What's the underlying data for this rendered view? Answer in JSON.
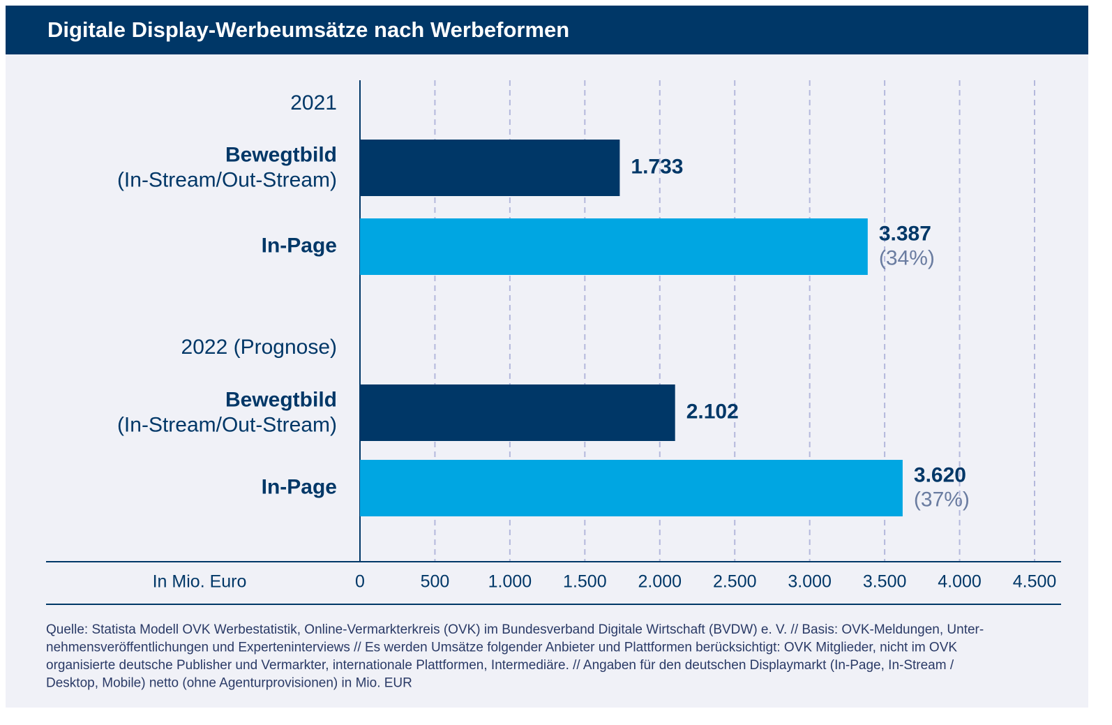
{
  "chart_data": {
    "type": "bar",
    "orientation": "horizontal",
    "title": "Digitale Display-Werbeumsätze nach Werbeformen",
    "groups": [
      {
        "label": "2021",
        "categories": [
          "Bewegtbild",
          "In-Page"
        ],
        "subcategories": [
          "(In-Stream/Out-Stream)",
          null
        ],
        "values": [
          1733,
          3387
        ],
        "value_labels": [
          "1.733",
          "3.387"
        ],
        "share_labels": [
          null,
          "(34%)"
        ],
        "colors": [
          "#003767",
          "#00a6e2"
        ]
      },
      {
        "label": "2022 (Prognose)",
        "categories": [
          "Bewegtbild",
          "In-Page"
        ],
        "subcategories": [
          "(In-Stream/Out-Stream)",
          null
        ],
        "values": [
          2102,
          3620
        ],
        "value_labels": [
          "2.102",
          "3.620"
        ],
        "share_labels": [
          null,
          "(37%)"
        ],
        "colors": [
          "#003767",
          "#00a6e2"
        ]
      }
    ],
    "xlabel": "In Mio. Euro",
    "xlim": [
      0,
      4500
    ],
    "xticks": [
      0,
      500,
      {
        "value": 1000,
        "label": "1.000"
      },
      {
        "value": 1500,
        "label": "1.500"
      },
      {
        "value": 2000,
        "label": "2.000"
      },
      {
        "value": 2500,
        "label": "2.500"
      },
      {
        "value": 3000,
        "label": "3.000"
      },
      {
        "value": 3500,
        "label": "3.500"
      },
      {
        "value": 4000,
        "label": "4.000"
      },
      {
        "value": 4500,
        "label": "4.500"
      }
    ],
    "grid": true,
    "footnote": [
      "Quelle: Statista Modell OVK Werbestatistik, Online-Vermarkterkreis (OVK) im Bundesverband Digitale Wirtschaft (BVDW) e. V. // Basis: OVK-Meldungen, Unter-",
      "nehmensveröffentlichungen und Experteninterviews // Es werden Umsätze folgender Anbieter und Plattformen berücksichtigt: OVK Mitglieder, nicht im OVK",
      "organisierte deutsche Publisher und Vermarkter, internationale Plattformen, Intermediäre. // Angaben für den deutschen Displaymarkt (In-Page, In-Stream /",
      "Desktop, Mobile) netto (ohne Agenturprovisionen) in Mio. EUR"
    ]
  }
}
